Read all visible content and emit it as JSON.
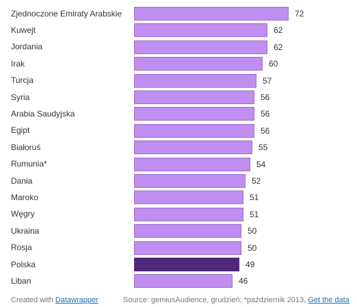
{
  "chart_data": {
    "type": "bar",
    "orientation": "horizontal",
    "title": "",
    "xlabel": "",
    "ylabel": "",
    "categories": [
      "Zjednoczone Emiraty Arabskie",
      "Kuwejt",
      "Jordania",
      "Irak",
      "Turcja",
      "Syria",
      "Arabia Saudyjska",
      "Egipt",
      "Białoruś",
      "Rumunia*",
      "Dania",
      "Maroko",
      "Węgry",
      "Ukraina",
      "Rosja",
      "Polska",
      "Liban"
    ],
    "values": [
      72,
      62,
      62,
      60,
      57,
      56,
      56,
      56,
      55,
      54,
      52,
      51,
      51,
      50,
      50,
      49,
      46
    ],
    "highlight_category": "Polska",
    "colors": {
      "bar": "#c08ef0",
      "highlight": "#4f2878",
      "border": "#9a6fc9"
    },
    "xlim": [
      0,
      72
    ],
    "grid": false,
    "legend": "none"
  },
  "footer": {
    "created_with_prefix": "Created with ",
    "created_with_link": "Datawrapper",
    "source_text": "Source: gemiusAudience, grudzień; *październik 2013, ",
    "get_data_link": "Get the data"
  }
}
